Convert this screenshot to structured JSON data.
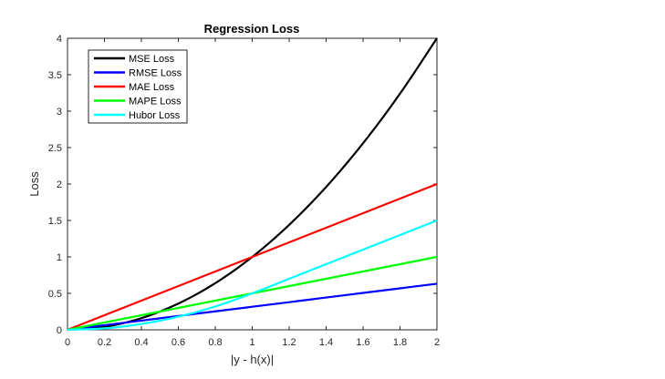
{
  "chart_data": {
    "type": "line",
    "title": "Regression Loss",
    "xlabel": "|y - h(x)|",
    "ylabel": "Loss",
    "xlim": [
      0,
      2
    ],
    "ylim": [
      0,
      4
    ],
    "xticks": [
      0,
      0.2,
      0.4,
      0.6,
      0.8,
      1,
      1.2,
      1.4,
      1.6,
      1.8,
      2
    ],
    "xtick_labels": [
      "0",
      "0.2",
      "0.4",
      "0.6",
      "0.8",
      "1",
      "1.2",
      "1.4",
      "1.6",
      "1.8",
      "2"
    ],
    "yticks": [
      0,
      0.5,
      1,
      1.5,
      2,
      2.5,
      3,
      3.5,
      4
    ],
    "ytick_labels": [
      "0",
      "0.5",
      "1",
      "1.5",
      "2",
      "2.5",
      "3",
      "3.5",
      "4"
    ],
    "grid": false,
    "legend_position": "top-left",
    "x": [
      0,
      0.2,
      0.4,
      0.6,
      0.8,
      1.0,
      1.2,
      1.4,
      1.6,
      1.8,
      2.0
    ],
    "series": [
      {
        "name": "MSE Loss",
        "color": "#000000",
        "values": [
          0,
          0.04,
          0.16,
          0.36,
          0.64,
          1.0,
          1.44,
          1.96,
          2.56,
          3.24,
          4.0
        ]
      },
      {
        "name": "RMSE Loss",
        "color": "#0000ff",
        "values": [
          0,
          0.063,
          0.126,
          0.19,
          0.253,
          0.316,
          0.379,
          0.443,
          0.506,
          0.569,
          0.632
        ]
      },
      {
        "name": "MAE Loss",
        "color": "#ff0000",
        "values": [
          0,
          0.2,
          0.4,
          0.6,
          0.8,
          1.0,
          1.2,
          1.4,
          1.6,
          1.8,
          2.0
        ]
      },
      {
        "name": "MAPE Loss",
        "color": "#00ff00",
        "values": [
          0,
          0.1,
          0.2,
          0.3,
          0.4,
          0.5,
          0.6,
          0.7,
          0.8,
          0.9,
          1.0
        ]
      },
      {
        "name": "Hubor Loss",
        "color": "#00ffff",
        "values": [
          0,
          0.02,
          0.08,
          0.18,
          0.32,
          0.5,
          0.7,
          0.9,
          1.1,
          1.3,
          1.5
        ]
      }
    ]
  }
}
